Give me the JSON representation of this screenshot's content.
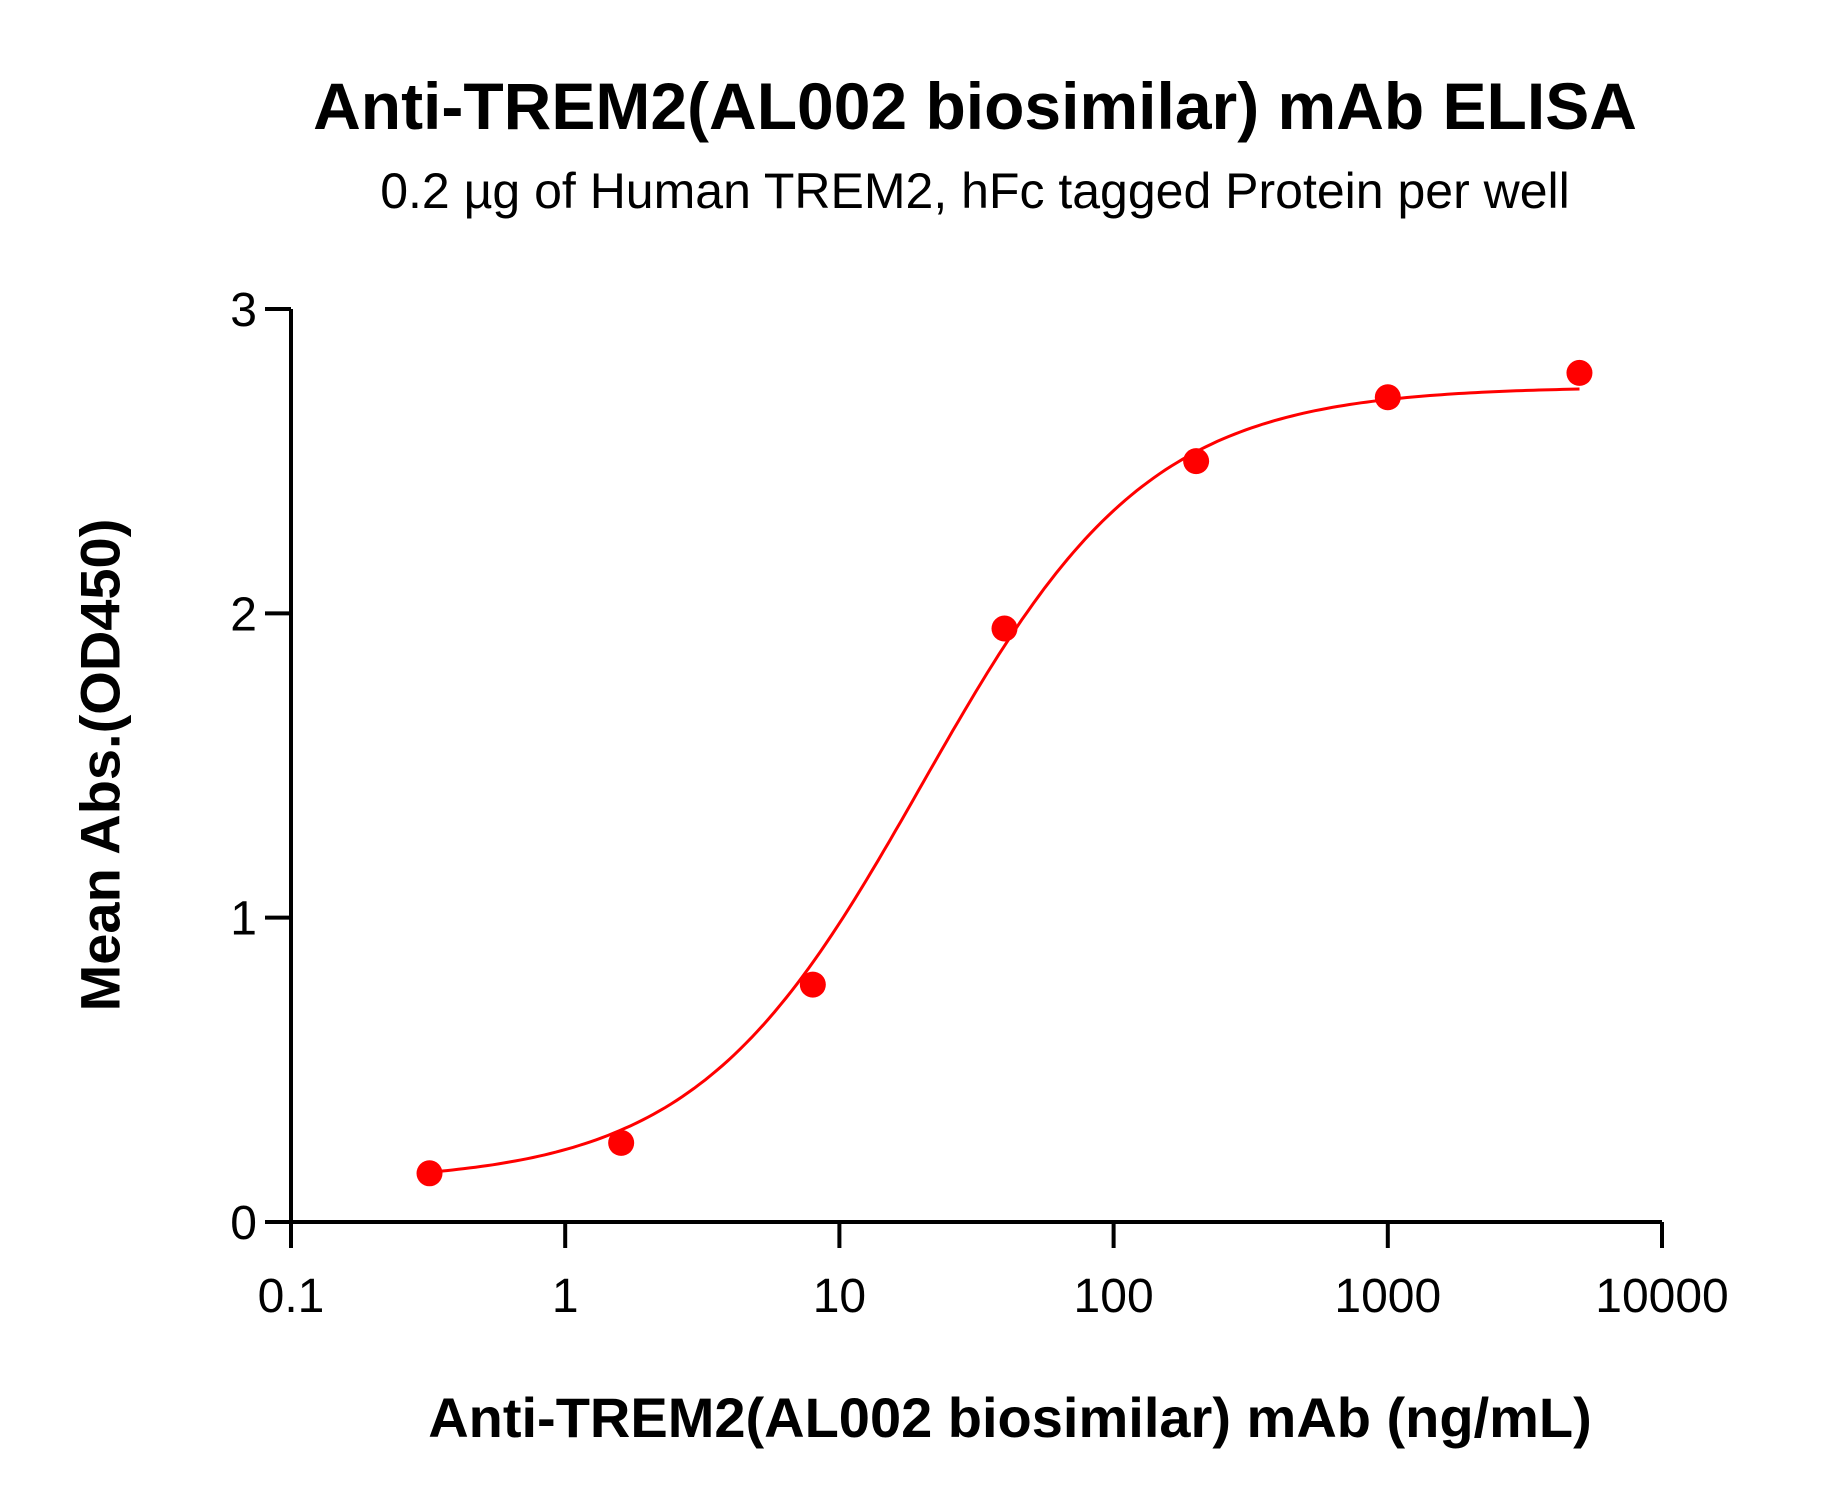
{
  "chart_data": {
    "type": "scatter",
    "title": "Anti-TREM2(AL002 biosimilar) mAb ELISA",
    "subtitle": "0.2 µg of Human TREM2, hFc tagged Protein per well",
    "xlabel": "Anti-TREM2(AL002 biosimilar) mAb (ng/mL)",
    "ylabel": "Mean Abs.(OD450)",
    "xscale": "log",
    "xlim": [
      0.1,
      10000
    ],
    "ylim": [
      0,
      3
    ],
    "xticks": [
      "0.1",
      "1",
      "10",
      "100",
      "1000",
      "10000"
    ],
    "yticks": [
      "0",
      "1",
      "2",
      "3"
    ],
    "grid": false,
    "color": "#ff0000",
    "fit": "4-parameter logistic curve",
    "x": [
      0.32,
      1.6,
      8,
      40,
      200,
      1000,
      5000
    ],
    "y": [
      0.16,
      0.26,
      0.78,
      1.95,
      2.5,
      2.71,
      2.79
    ]
  }
}
